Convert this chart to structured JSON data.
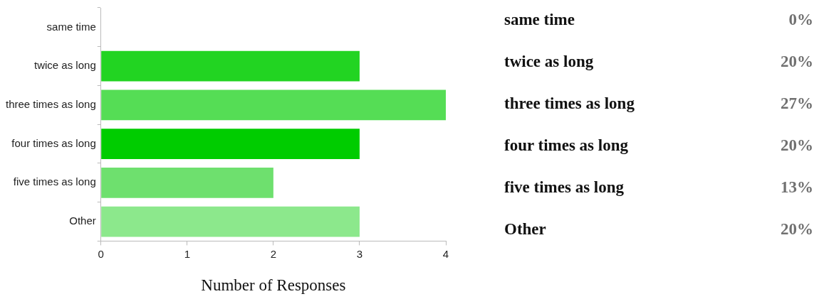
{
  "chart_data": {
    "type": "bar",
    "orientation": "horizontal",
    "categories": [
      "same time",
      "twice as long",
      "three times as long",
      "four times as long",
      "five times as long",
      "Other"
    ],
    "values": [
      0,
      3,
      4,
      3,
      2,
      3
    ],
    "colors": [
      "#22d422",
      "#22d422",
      "#55dd55",
      "#00cc00",
      "#6ee06e",
      "#8ce88c"
    ],
    "annotations": [
      "0%",
      "20%",
      "27%",
      "20%",
      "13%",
      "20%"
    ],
    "xlim": [
      0,
      4
    ],
    "xticks": [
      0,
      1,
      2,
      3,
      4
    ],
    "xlabel": "Number of Responses",
    "legend": false
  }
}
